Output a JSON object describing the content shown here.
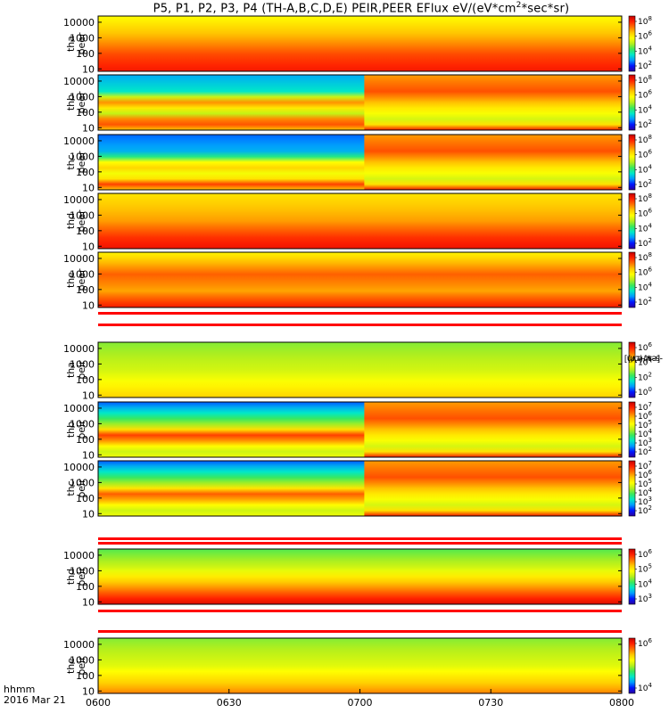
{
  "title": {
    "text": "P5, P1, P2, P3, P4 (TH-A,B,C,D,E) PEIR,PEER EFlux eV/(eV*cm",
    "sup": "2",
    "tail": "*sec*sr)"
  },
  "units_label": {
    "text": "[eV/(cm",
    "sup": "2",
    "tail": "-s-sr-eV)]"
  },
  "time_axis": {
    "corner_labels": [
      "hhmm",
      "2016 Mar 21"
    ],
    "ticks": [
      "0600",
      "0630",
      "0700",
      "0730",
      "0800"
    ],
    "range": [
      "0600",
      "0800"
    ]
  },
  "colors": {
    "colormap": [
      "#2a00a0",
      "#0016ff",
      "#009bff",
      "#00e8c8",
      "#3ae85a",
      "#b4ef1c",
      "#ffff00",
      "#ffc800",
      "#ff7000",
      "#ff2000",
      "#c40000"
    ],
    "gap_fill": "#ffffff",
    "gap_stripe": "#ff0000"
  },
  "chart_data": {
    "type": "heatmap",
    "x_range": [
      "0600",
      "0800"
    ],
    "y_scale": "log",
    "y_range_eV": [
      7,
      25000
    ],
    "y_ticks": [
      "10000",
      "1000",
      "100",
      "10"
    ],
    "panels": [
      {
        "id": "tha_peer",
        "label": [
          "tha",
          "peer"
        ],
        "colorbar_ticks": [
          {
            "base": "10",
            "exp": "8"
          },
          {
            "base": "10",
            "exp": "6"
          },
          {
            "base": "10",
            "exp": "4"
          },
          {
            "base": "10",
            "exp": "2"
          }
        ],
        "profile": [
          [
            0,
            6
          ],
          [
            0.45,
            7.5
          ],
          [
            0.7,
            8.5
          ],
          [
            1,
            9.2
          ]
        ],
        "disturbed_after": null
      },
      {
        "id": "thb_peer",
        "label": [
          "thb",
          "peer"
        ],
        "colorbar_ticks": [
          {
            "base": "10",
            "exp": "8"
          },
          {
            "base": "10",
            "exp": "6"
          },
          {
            "base": "10",
            "exp": "4"
          },
          {
            "base": "10",
            "exp": "2"
          }
        ],
        "profile": [
          [
            0,
            2.2
          ],
          [
            0.3,
            3
          ],
          [
            0.5,
            7.6
          ],
          [
            0.7,
            5.2
          ],
          [
            0.85,
            9
          ],
          [
            1,
            7
          ]
        ],
        "disturbed_after": "0701"
      },
      {
        "id": "thc_peer",
        "label": [
          "thc",
          "peer"
        ],
        "colorbar_ticks": [
          {
            "base": "10",
            "exp": "8"
          },
          {
            "base": "10",
            "exp": "6"
          },
          {
            "base": "10",
            "exp": "4"
          },
          {
            "base": "10",
            "exp": "2"
          }
        ],
        "profile": [
          [
            0,
            1.6
          ],
          [
            0.35,
            2.4
          ],
          [
            0.55,
            7.2
          ],
          [
            0.75,
            5.4
          ],
          [
            0.9,
            8.6
          ],
          [
            1,
            7
          ]
        ],
        "disturbed_after": "0701"
      },
      {
        "id": "thd_peer",
        "label": [
          "thd",
          "peer"
        ],
        "colorbar_ticks": [
          {
            "base": "10",
            "exp": "8"
          },
          {
            "base": "10",
            "exp": "6"
          },
          {
            "base": "10",
            "exp": "4"
          },
          {
            "base": "10",
            "exp": "2"
          }
        ],
        "profile": [
          [
            0,
            6.5
          ],
          [
            0.5,
            7.5
          ],
          [
            0.8,
            8.8
          ],
          [
            1,
            9.3
          ]
        ],
        "disturbed_after": null
      },
      {
        "id": "the_peer",
        "label": [
          "the",
          "peer"
        ],
        "colorbar_ticks": [
          {
            "base": "10",
            "exp": "8"
          },
          {
            "base": "10",
            "exp": "6"
          },
          {
            "base": "10",
            "exp": "4"
          },
          {
            "base": "10",
            "exp": "2"
          }
        ],
        "profile": [
          [
            0,
            6.2
          ],
          [
            0.4,
            8.2
          ],
          [
            0.7,
            7.4
          ],
          [
            1,
            9.2
          ]
        ],
        "disturbed_after": null
      },
      {
        "id": "tha_peir",
        "label": [
          "tha",
          "peir"
        ],
        "colorbar_ticks": [
          {
            "base": "10",
            "exp": "6"
          },
          {
            "base": "10",
            "exp": "4"
          },
          {
            "base": "10",
            "exp": "2"
          },
          {
            "base": "10",
            "exp": "0"
          }
        ],
        "profile": [
          [
            0,
            4.6
          ],
          [
            0.5,
            5.4
          ],
          [
            0.8,
            6.2
          ],
          [
            1,
            6.8
          ]
        ],
        "disturbed_after": null
      },
      {
        "id": "thb_peir",
        "label": [
          "thb",
          "peir"
        ],
        "colorbar_ticks": [
          {
            "base": "10",
            "exp": "7"
          },
          {
            "base": "10",
            "exp": "6"
          },
          {
            "base": "10",
            "exp": "5"
          },
          {
            "base": "10",
            "exp": "4"
          },
          {
            "base": "10",
            "exp": "3"
          },
          {
            "base": "10",
            "exp": "2"
          }
        ],
        "profile": [
          [
            0,
            1.5
          ],
          [
            0.2,
            3
          ],
          [
            0.42,
            5
          ],
          [
            0.62,
            9
          ],
          [
            0.78,
            6.2
          ],
          [
            0.95,
            5
          ],
          [
            1,
            5.8
          ]
        ],
        "disturbed_after": "0701"
      },
      {
        "id": "thc_peir",
        "label": [
          "thc",
          "peir"
        ],
        "colorbar_ticks": [
          {
            "base": "10",
            "exp": "7"
          },
          {
            "base": "10",
            "exp": "6"
          },
          {
            "base": "10",
            "exp": "5"
          },
          {
            "base": "10",
            "exp": "4"
          },
          {
            "base": "10",
            "exp": "3"
          },
          {
            "base": "10",
            "exp": "2"
          }
        ],
        "profile": [
          [
            0,
            1.5
          ],
          [
            0.2,
            3
          ],
          [
            0.42,
            5
          ],
          [
            0.62,
            8.6
          ],
          [
            0.78,
            6.2
          ],
          [
            0.95,
            5
          ],
          [
            1,
            5.8
          ]
        ],
        "disturbed_after": "0701"
      },
      {
        "id": "thd_peir",
        "label": [
          "thd",
          "peir"
        ],
        "colorbar_ticks": [
          {
            "base": "10",
            "exp": "6"
          },
          {
            "base": "10",
            "exp": "5"
          },
          {
            "base": "10",
            "exp": "4"
          },
          {
            "base": "10",
            "exp": "3"
          }
        ],
        "profile": [
          [
            0,
            4.2
          ],
          [
            0.35,
            5.4
          ],
          [
            0.7,
            7.6
          ],
          [
            0.9,
            9
          ],
          [
            1,
            9.6
          ]
        ],
        "disturbed_after": null
      },
      {
        "id": "the_peir",
        "label": [
          "the",
          "peir"
        ],
        "colorbar_ticks": [
          {
            "base": "10",
            "exp": "6"
          },
          {
            "base": "10",
            "exp": "4"
          }
        ],
        "profile": [
          [
            0,
            4.6
          ],
          [
            0.5,
            5.6
          ],
          [
            0.8,
            6.8
          ],
          [
            1,
            7.8
          ]
        ],
        "disturbed_after": null
      }
    ]
  }
}
